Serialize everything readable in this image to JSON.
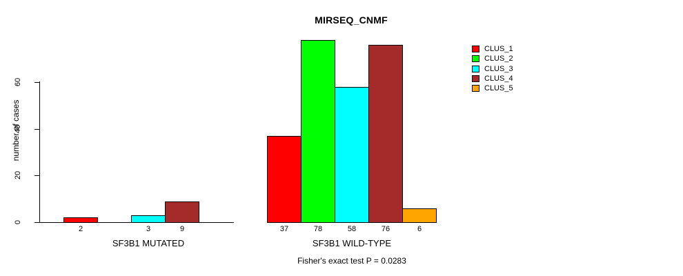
{
  "chart": {
    "title": "MIRSEQ_CNMF",
    "ylabel": "number of cases",
    "annotation": "Fisher's exact test P = 0.0283"
  },
  "chart_data": {
    "type": "bar",
    "title": "MIRSEQ_CNMF",
    "xlabel": "",
    "ylabel": "number of cases",
    "yticks": [
      0,
      20,
      40,
      60
    ],
    "ylim": [
      0,
      78
    ],
    "grid": false,
    "legend_position": "right-outside",
    "legend": [
      {
        "name": "CLUS_1",
        "color": "#ff0000"
      },
      {
        "name": "CLUS_2",
        "color": "#00ff00"
      },
      {
        "name": "CLUS_3",
        "color": "#00ffff"
      },
      {
        "name": "CLUS_4",
        "color": "#a52a2a"
      },
      {
        "name": "CLUS_5",
        "color": "#ffa500"
      }
    ],
    "groups": [
      {
        "label": "SF3B1 MUTATED",
        "categories": [
          "CLUS_1",
          "CLUS_2",
          "CLUS_3",
          "CLUS_4",
          "CLUS_5"
        ],
        "values": [
          2,
          0,
          3,
          9,
          0
        ],
        "bar_labels": [
          "2",
          "",
          "3",
          "9",
          ""
        ]
      },
      {
        "label": "SF3B1 WILD-TYPE",
        "categories": [
          "CLUS_1",
          "CLUS_2",
          "CLUS_3",
          "CLUS_4",
          "CLUS_5"
        ],
        "values": [
          37,
          78,
          58,
          76,
          6
        ],
        "bar_labels": [
          "37",
          "78",
          "58",
          "76",
          "6"
        ]
      }
    ],
    "annotation": "Fisher's exact test P = 0.0283"
  }
}
